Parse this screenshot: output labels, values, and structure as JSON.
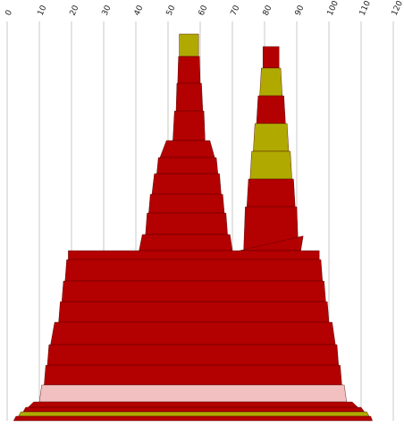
{
  "chart_data": {
    "type": "area",
    "title": "",
    "xlabel": "",
    "ylabel": "",
    "xlim": [
      0,
      120
    ],
    "x_ticks": [
      "0",
      "10",
      "20",
      "30",
      "40",
      "50",
      "60",
      "70",
      "80",
      "90",
      "100",
      "110",
      "120"
    ],
    "grid": true,
    "legend": "none",
    "colors": {
      "red": "#b30000",
      "olive": "#b0aa00",
      "pink": "#f2c0c0",
      "outline": "#4a0000",
      "grid": "#c8c8c8"
    },
    "peaks": [
      {
        "name": "",
        "bands": [
          {
            "color": "olive",
            "x0": 53.5,
            "x1": 59.5
          },
          {
            "color": "red",
            "x0": 53.0,
            "x1": 60.0
          },
          {
            "color": "red",
            "x0": 52.5,
            "x1": 60.8
          },
          {
            "color": "red",
            "x0": 51.5,
            "x1": 61.5
          },
          {
            "color": "red",
            "x0": 47.5,
            "x1": 64.5
          },
          {
            "color": "red",
            "x0": 46.5,
            "x1": 65.5
          },
          {
            "color": "red",
            "x0": 45.0,
            "x1": 66.5
          },
          {
            "color": "red",
            "x0": 44.0,
            "x1": 67.5
          },
          {
            "color": "red",
            "x0": 43.0,
            "x1": 68.5
          },
          {
            "color": "red",
            "x0": 41.0,
            "x1": 70.0
          }
        ]
      },
      {
        "name": "",
        "bands": [
          {
            "color": "red",
            "x0": 79.5,
            "x1": 84.5
          },
          {
            "color": "olive",
            "x0": 78.5,
            "x1": 85.5
          },
          {
            "color": "red",
            "x0": 77.5,
            "x1": 86.5
          },
          {
            "color": "olive",
            "x0": 76.5,
            "x1": 87.5
          },
          {
            "color": "olive",
            "x0": 75.5,
            "x1": 88.5
          },
          {
            "color": "red",
            "x0": 74.5,
            "x1": 89.5
          },
          {
            "color": "red",
            "x0": 73.5,
            "x1": 90.5
          },
          {
            "color": "red",
            "x0": 71.0,
            "x1": 92.0
          }
        ]
      },
      {
        "name": "",
        "bands": [
          {
            "color": "red",
            "x0": 19.0,
            "x1": 97.0
          },
          {
            "color": "red",
            "x0": 18.0,
            "x1": 98.0
          },
          {
            "color": "red",
            "x0": 17.0,
            "x1": 99.0
          },
          {
            "color": "red",
            "x0": 16.0,
            "x1": 100.0
          },
          {
            "color": "red",
            "x0": 13.5,
            "x1": 102.0
          },
          {
            "color": "red",
            "x0": 12.5,
            "x1": 103.0
          },
          {
            "color": "red",
            "x0": 11.5,
            "x1": 104.0
          },
          {
            "color": "pink",
            "x0": 10.0,
            "x1": 105.5
          },
          {
            "color": "red",
            "x0": 6.5,
            "x1": 109.0
          },
          {
            "color": "red",
            "x0": 5.0,
            "x1": 111.0
          },
          {
            "color": "olive",
            "x0": 3.5,
            "x1": 112.5
          },
          {
            "color": "red",
            "x0": 2.0,
            "x1": 113.5
          }
        ]
      }
    ]
  }
}
